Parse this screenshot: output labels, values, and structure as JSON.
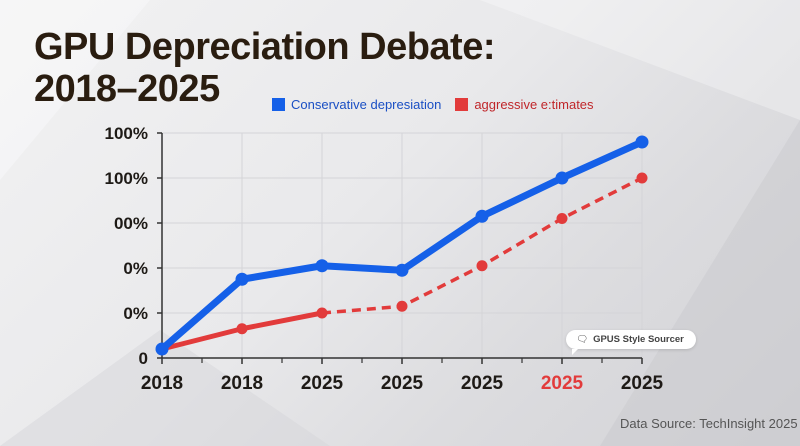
{
  "title_line1": "GPU Depreciation Debate:",
  "title_line2": "2018–2025",
  "source": "Data Source: TechInsight 2025",
  "bubble_label": "GPUS Style Sourcer",
  "bubble_icon": "chat-bubble-icon",
  "chart_data": {
    "type": "line",
    "categories": [
      "2018",
      "2018",
      "2025",
      "2025",
      "2025",
      "2025",
      "2025"
    ],
    "highlight_category_index": 5,
    "highlight_color": "#e23b3b",
    "y_tick_labels": [
      "0",
      "0%",
      "0%",
      "00%",
      "100%",
      "100%"
    ],
    "ylim": [
      0,
      100
    ],
    "grid": true,
    "legend_placement": "top-center",
    "series": [
      {
        "name": "Conservative depresiation",
        "color": "#1560e8",
        "style": "solid",
        "values": [
          4,
          35,
          41,
          39,
          63,
          80,
          96
        ]
      },
      {
        "name": "aggressive e:timates",
        "color": "#e23b3b",
        "style": "solid-then-dashed",
        "dashed_from_index": 2,
        "values": [
          4,
          13,
          20,
          23,
          41,
          62,
          80
        ]
      }
    ]
  }
}
